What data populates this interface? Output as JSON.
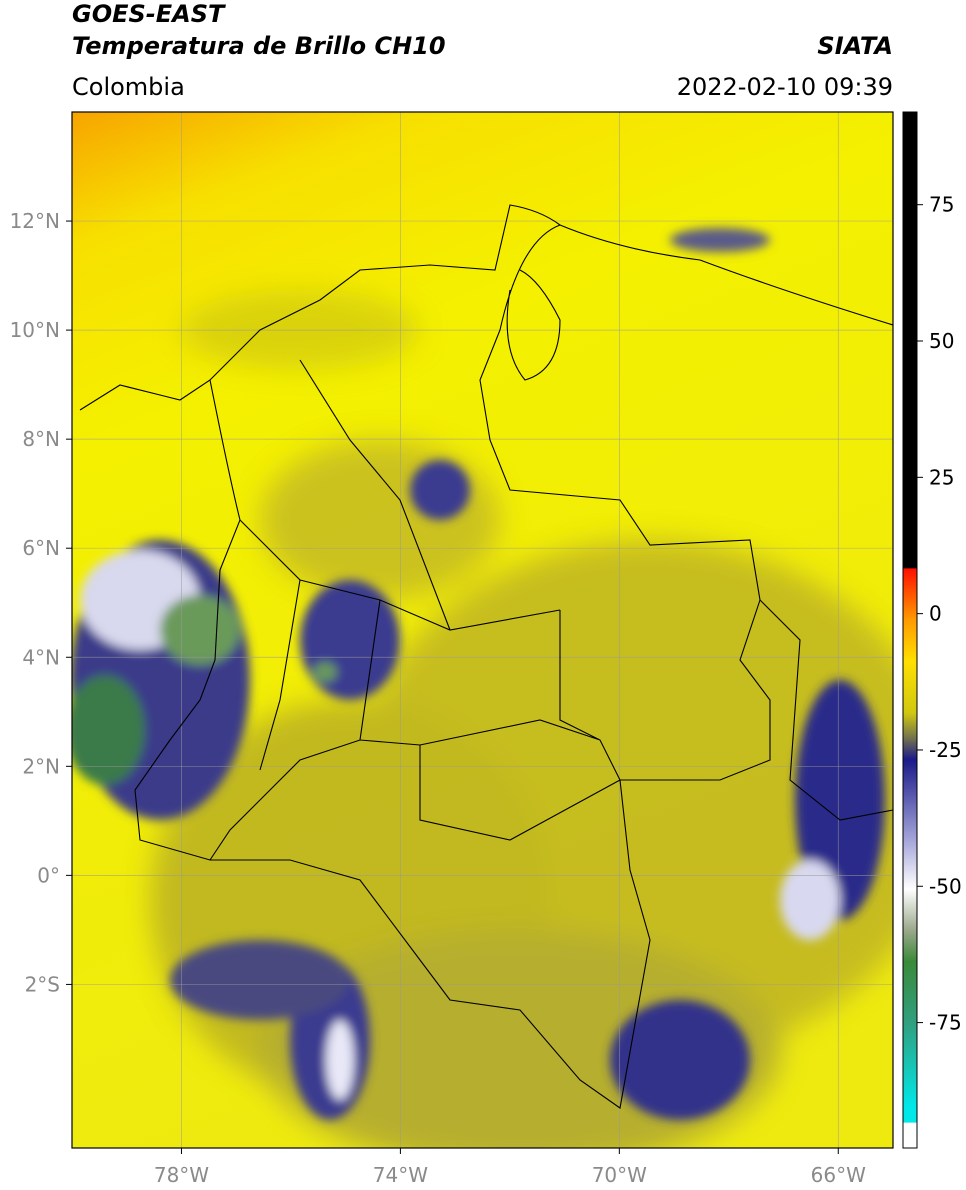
{
  "header": {
    "title": "GOES-EAST",
    "subtitle": "Temperatura de Brillo CH10",
    "region": "Colombia",
    "source": "SIATA",
    "datetime": "2022-02-10 09:39"
  },
  "map": {
    "lon_range": [
      -80,
      -65
    ],
    "lat_range": [
      -5,
      14
    ],
    "lon_ticks": [
      {
        "value": -78,
        "label": "78°W"
      },
      {
        "value": -74,
        "label": "74°W"
      },
      {
        "value": -70,
        "label": "70°W"
      },
      {
        "value": -66,
        "label": "66°W"
      }
    ],
    "lat_ticks": [
      {
        "value": 12,
        "label": "12°N"
      },
      {
        "value": 10,
        "label": "10°N"
      },
      {
        "value": 8,
        "label": "8°N"
      },
      {
        "value": 6,
        "label": "6°N"
      },
      {
        "value": 4,
        "label": "4°N"
      },
      {
        "value": 2,
        "label": "2°N"
      },
      {
        "value": 0,
        "label": "0°"
      },
      {
        "value": -2,
        "label": "2°S"
      }
    ]
  },
  "colorbar": {
    "range": [
      -98,
      92
    ],
    "ticks": [
      75,
      50,
      25,
      0,
      -25,
      -50,
      -75
    ]
  }
}
